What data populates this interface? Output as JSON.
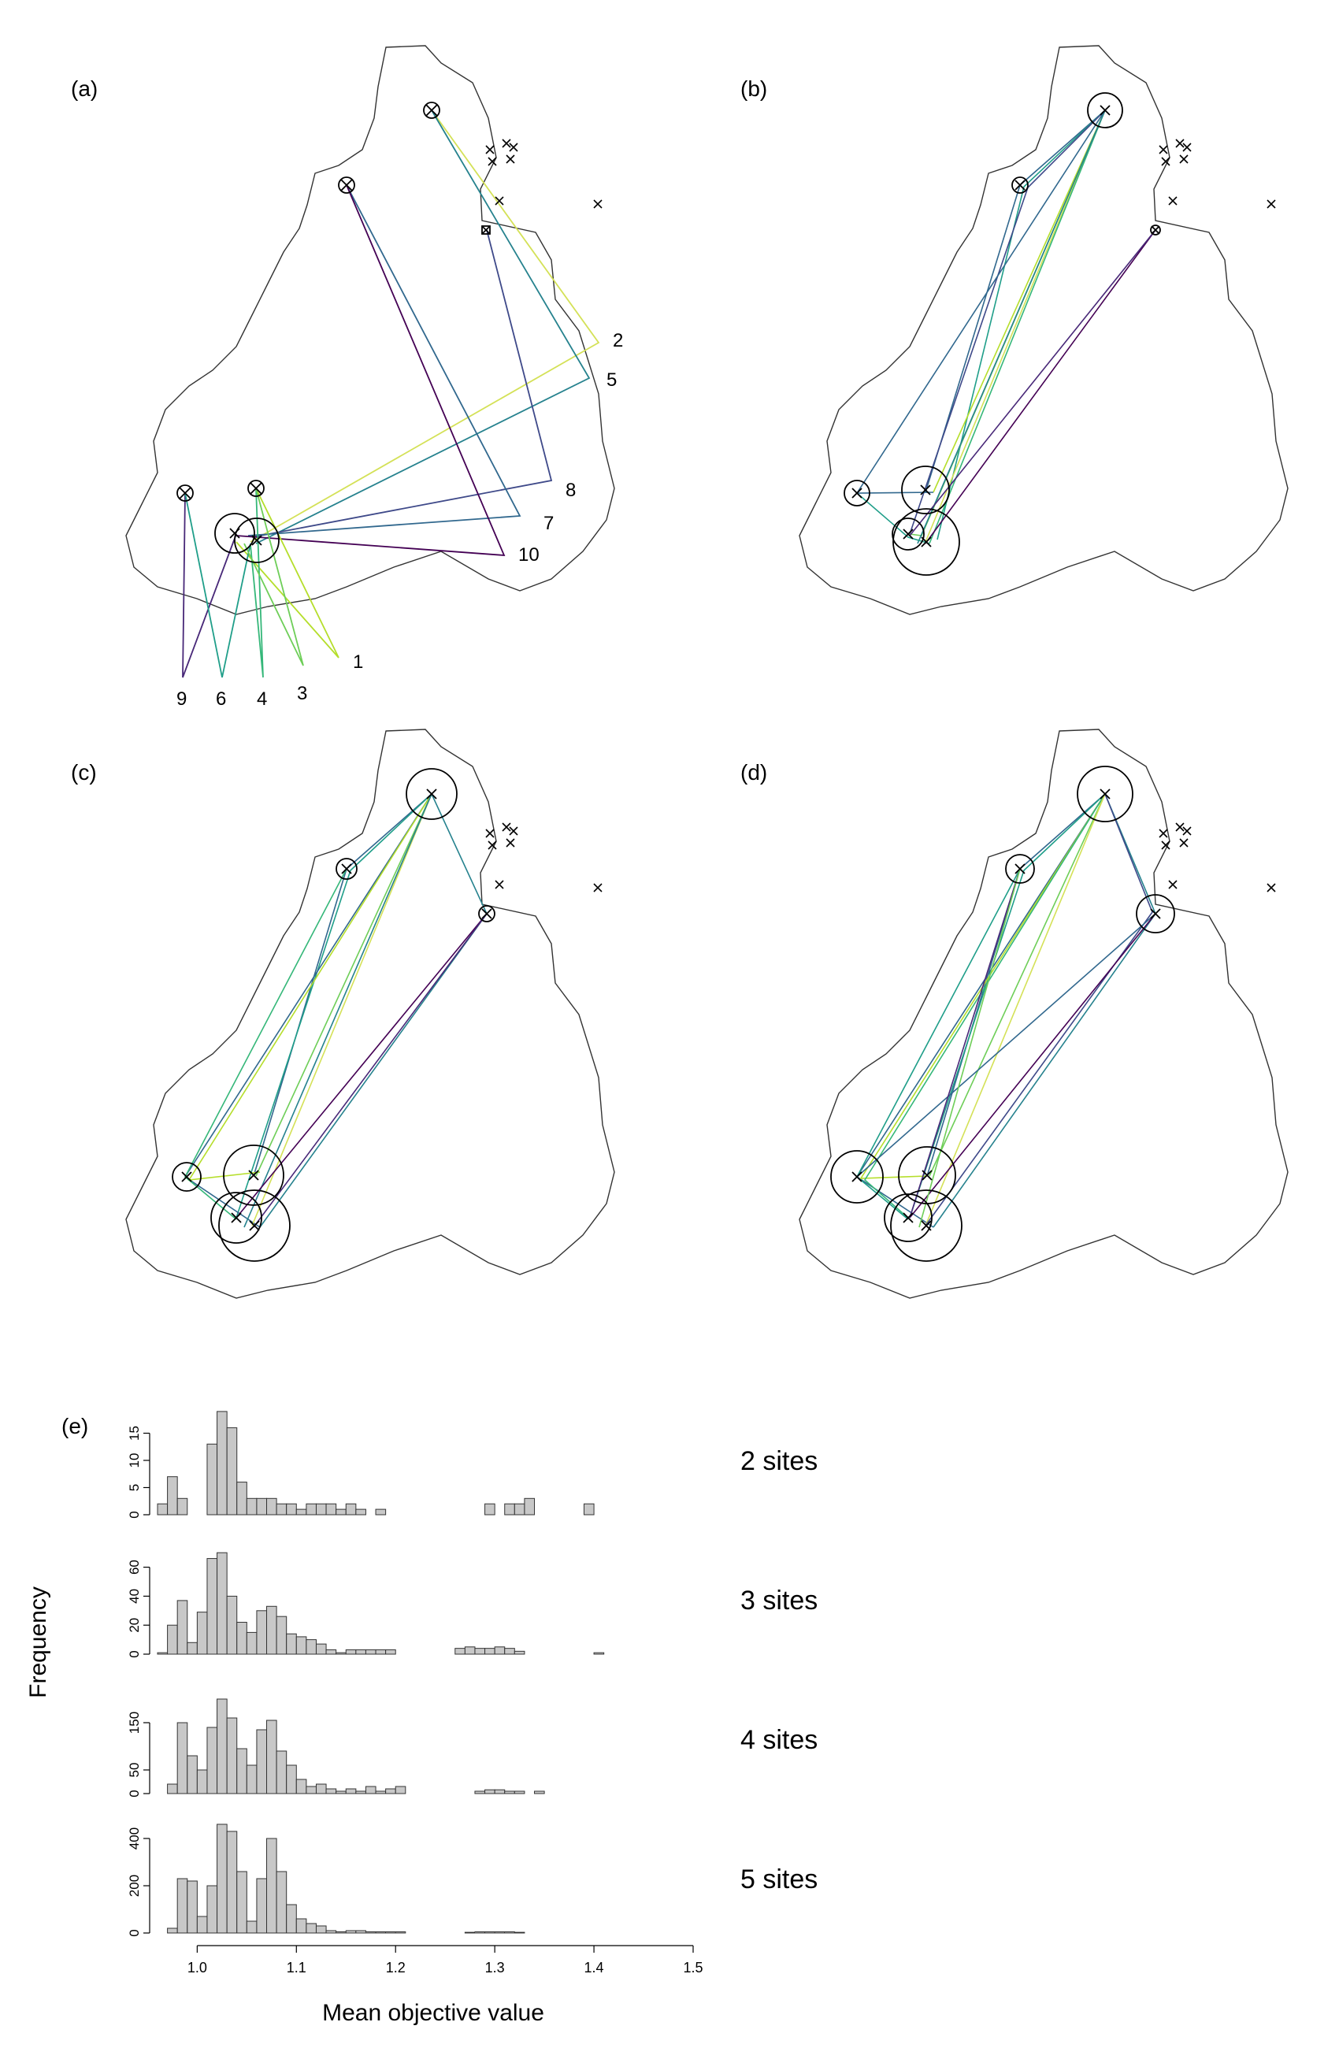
{
  "panels": [
    {
      "label": "(a)",
      "route_labels": [
        "2",
        "5",
        "8",
        "7",
        "10",
        "1",
        "9",
        "6",
        "4",
        "3"
      ]
    },
    {
      "label": "(b)"
    },
    {
      "label": "(c)"
    },
    {
      "label": "(d)"
    },
    {
      "label": "(e)"
    }
  ],
  "colors": {
    "bar_fill": "#c8c8c8",
    "outline": "#333333",
    "routes": [
      "#440154",
      "#482878",
      "#3e4989",
      "#31688e",
      "#26828e",
      "#1f9e89",
      "#35b779",
      "#6ece58",
      "#b5de2b",
      "#d4e157"
    ]
  },
  "chart_data": {
    "type": "bar",
    "xlabel": "Mean objective value",
    "ylabel": "Frequency",
    "xlim": [
      0.96,
      1.5
    ],
    "x_ticks": [
      "1.0",
      "1.1",
      "1.2",
      "1.3",
      "1.4",
      "1.5"
    ],
    "bin_start": 0.96,
    "bin_width": 0.01,
    "series": [
      {
        "name": "2 sites",
        "ylim": [
          0,
          20
        ],
        "y_ticks": [
          "0",
          "5",
          "10",
          "15"
        ],
        "values": [
          2,
          7,
          3,
          0,
          0,
          13,
          19,
          16,
          6,
          3,
          3,
          3,
          2,
          2,
          1,
          2,
          2,
          2,
          1,
          2,
          1,
          0,
          1,
          0,
          0,
          0,
          0,
          0,
          0,
          0,
          0,
          0,
          0,
          2,
          0,
          2,
          2,
          3,
          0,
          0,
          0,
          0,
          0,
          2
        ]
      },
      {
        "name": "3 sites",
        "ylim": [
          0,
          75
        ],
        "y_ticks": [
          "0",
          "20",
          "40",
          "60"
        ],
        "values": [
          1,
          20,
          37,
          8,
          29,
          66,
          70,
          40,
          22,
          15,
          30,
          33,
          26,
          14,
          12,
          10,
          7,
          3,
          1,
          3,
          3,
          3,
          3,
          3,
          0,
          0,
          0,
          0,
          0,
          0,
          4,
          5,
          4,
          4,
          5,
          4,
          2,
          0,
          0,
          0,
          0,
          0,
          0,
          0,
          1
        ]
      },
      {
        "name": "4 sites",
        "ylim": [
          0,
          230
        ],
        "y_ticks": [
          "0",
          "50",
          "150"
        ],
        "values": [
          0,
          20,
          150,
          80,
          50,
          140,
          200,
          160,
          95,
          60,
          135,
          155,
          90,
          60,
          30,
          15,
          20,
          10,
          5,
          10,
          5,
          15,
          5,
          10,
          15,
          0,
          0,
          0,
          0,
          0,
          0,
          0,
          5,
          8,
          8,
          5,
          5,
          0,
          5,
          0,
          0,
          0,
          0,
          0,
          0
        ]
      },
      {
        "name": "5 sites",
        "ylim": [
          0,
          460
        ],
        "y_ticks": [
          "0",
          "200",
          "400"
        ],
        "values": [
          0,
          20,
          230,
          220,
          70,
          200,
          460,
          430,
          260,
          50,
          230,
          400,
          260,
          120,
          60,
          40,
          30,
          10,
          5,
          10,
          10,
          5,
          5,
          5,
          5,
          0,
          0,
          0,
          0,
          0,
          0,
          3,
          5,
          5,
          5,
          5,
          3,
          0,
          0,
          0,
          0,
          0,
          0,
          0,
          0
        ]
      }
    ]
  }
}
